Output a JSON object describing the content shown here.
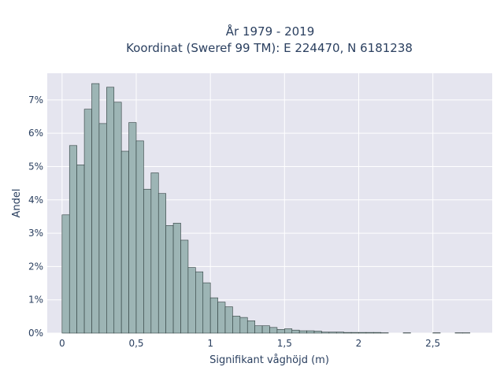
{
  "chart_data": {
    "type": "bar",
    "title_lines": [
      "År 1979 - 2019",
      "Koordinat (Sweref 99 TM): E 224470, N 6181238"
    ],
    "xlabel": "Signifikant våghöjd (m)",
    "ylabel": "Andel",
    "xlim": [
      -0.1,
      2.9
    ],
    "ylim": [
      0,
      0.078
    ],
    "x_ticks": [
      0,
      0.5,
      1,
      1.5,
      2,
      2.5
    ],
    "x_tick_labels": [
      "0",
      "0,5",
      "1",
      "1,5",
      "2",
      "2,5"
    ],
    "y_ticks": [
      0,
      0.01,
      0.02,
      0.03,
      0.04,
      0.05,
      0.06,
      0.07
    ],
    "y_tick_labels": [
      "0%",
      "1%",
      "2%",
      "3%",
      "4%",
      "5%",
      "6%",
      "7%"
    ],
    "bin_width": 0.05,
    "bin_starts": [
      0,
      0.05,
      0.1,
      0.15,
      0.2,
      0.25,
      0.3,
      0.35,
      0.4,
      0.45,
      0.5,
      0.55,
      0.6,
      0.65,
      0.7,
      0.75,
      0.8,
      0.85,
      0.9,
      0.95,
      1.0,
      1.05,
      1.1,
      1.15,
      1.2,
      1.25,
      1.3,
      1.35,
      1.4,
      1.45,
      1.5,
      1.55,
      1.6,
      1.65,
      1.7,
      1.75,
      1.8,
      1.85,
      1.9,
      1.95,
      2.0,
      2.05,
      2.1,
      2.15,
      2.2,
      2.25,
      2.3,
      2.35,
      2.4,
      2.45,
      2.5,
      2.55,
      2.6,
      2.65,
      2.7,
      2.75
    ],
    "values": [
      0.0355,
      0.0563,
      0.0505,
      0.0672,
      0.0749,
      0.0629,
      0.0738,
      0.0693,
      0.0546,
      0.0632,
      0.0577,
      0.0432,
      0.0481,
      0.0419,
      0.0323,
      0.033,
      0.0279,
      0.0197,
      0.0184,
      0.0151,
      0.0106,
      0.0093,
      0.0079,
      0.0051,
      0.0047,
      0.0037,
      0.0022,
      0.0022,
      0.0017,
      0.0011,
      0.0013,
      0.0009,
      0.0007,
      0.0007,
      0.0006,
      0.0003,
      0.0003,
      0.0003,
      0.0002,
      0.0002,
      0.0002,
      0.0002,
      0.0002,
      0.0001,
      0.0,
      0.0,
      0.0001,
      0.0,
      0.0,
      0.0,
      0.0001,
      0.0,
      0.0,
      0.0001,
      0.0001,
      0.0
    ],
    "grid": true,
    "colors": {
      "bar_fill": "#9db5b5",
      "bar_stroke": "#2f3e3e",
      "plot_background": "#e5e5ef",
      "grid": "#ffffff",
      "text": "#2a3f5f"
    }
  }
}
